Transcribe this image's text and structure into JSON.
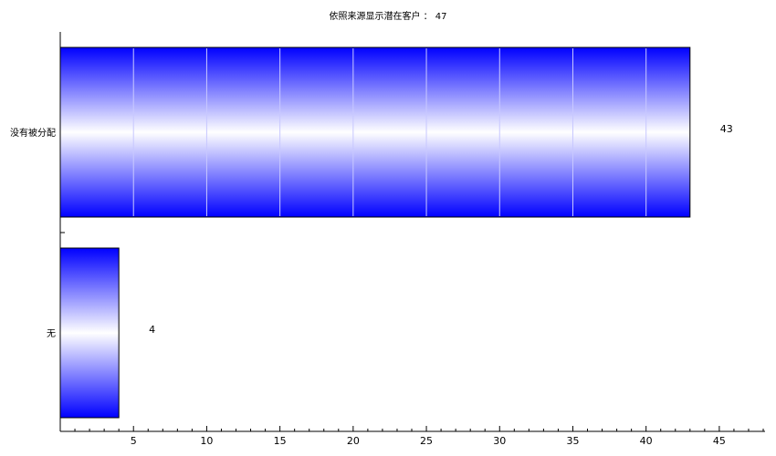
{
  "chart_data": {
    "type": "bar",
    "orientation": "horizontal",
    "title": "依照来源显示潜在客户 ： 47",
    "categories": [
      "没有被分配",
      "无"
    ],
    "values": [
      43,
      4
    ],
    "data_labels": [
      "43",
      "4"
    ],
    "xlim": [
      0,
      47.5
    ],
    "x_ticks": [
      5,
      10,
      15,
      20,
      25,
      30,
      35,
      40,
      45
    ],
    "x_minor_step": 1,
    "grid": false,
    "legend": "none",
    "bar_fill": "vertical gradient blue-white-blue",
    "colors": {
      "bar_edge": "#0000ff",
      "bar_center": "#ffffff",
      "bar_outline": "#000000",
      "axis": "#000000"
    }
  }
}
